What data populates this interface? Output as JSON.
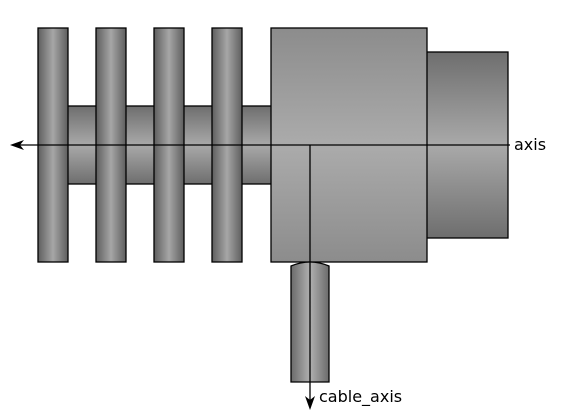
{
  "labels": {
    "axis": "axis",
    "cable_axis": "cable_axis"
  },
  "components": {
    "fin_count": 4,
    "colors": {
      "outline": "#000000",
      "edge_dark": "#6a6a6a",
      "mid": "#a8a8a8",
      "body_light": "#ababab"
    }
  }
}
